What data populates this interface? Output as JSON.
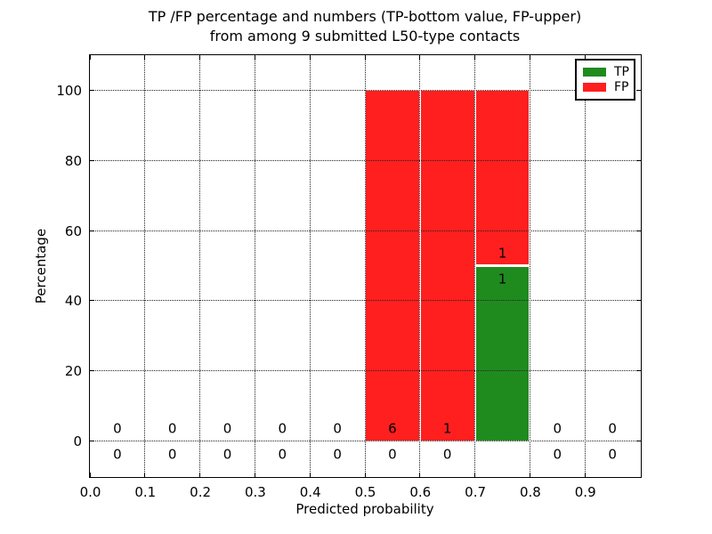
{
  "chart_data": {
    "type": "bar",
    "stacked": true,
    "title_line1": "TP /FP percentage and numbers (TP-bottom value, FP-upper)",
    "title_line2": "from among 9 submitted L50-type contacts",
    "xlabel": "Predicted probability",
    "ylabel": "Percentage",
    "xlim": [
      0,
      1
    ],
    "ylim": [
      -10,
      110
    ],
    "x_ticks": [
      {
        "value": 0.0,
        "label": "0.0"
      },
      {
        "value": 0.1,
        "label": "0.1"
      },
      {
        "value": 0.2,
        "label": "0.2"
      },
      {
        "value": 0.3,
        "label": "0.3"
      },
      {
        "value": 0.4,
        "label": "0.4"
      },
      {
        "value": 0.5,
        "label": "0.5"
      },
      {
        "value": 0.6,
        "label": "0.6"
      },
      {
        "value": 0.7,
        "label": "0.7"
      },
      {
        "value": 0.8,
        "label": "0.8"
      },
      {
        "value": 0.9,
        "label": "0.9"
      }
    ],
    "y_ticks": [
      {
        "value": 0,
        "label": "0"
      },
      {
        "value": 20,
        "label": "20"
      },
      {
        "value": 40,
        "label": "40"
      },
      {
        "value": 60,
        "label": "60"
      },
      {
        "value": 80,
        "label": "80"
      },
      {
        "value": 100,
        "label": "100"
      }
    ],
    "grid_style": "dotted",
    "colors": {
      "tp": "#1f8b1f",
      "fp": "#ff1f1f"
    },
    "legend": {
      "position": "upper right",
      "entries": [
        {
          "key": "tp",
          "label": "TP"
        },
        {
          "key": "fp",
          "label": "FP"
        }
      ]
    },
    "total_submitted": 9,
    "bins": [
      {
        "x0": 0.0,
        "x1": 0.1,
        "tp_count": "0",
        "fp_count": "0",
        "tp_pct": 0,
        "fp_pct": 0
      },
      {
        "x0": 0.1,
        "x1": 0.2,
        "tp_count": "0",
        "fp_count": "0",
        "tp_pct": 0,
        "fp_pct": 0
      },
      {
        "x0": 0.2,
        "x1": 0.3,
        "tp_count": "0",
        "fp_count": "0",
        "tp_pct": 0,
        "fp_pct": 0
      },
      {
        "x0": 0.3,
        "x1": 0.4,
        "tp_count": "0",
        "fp_count": "0",
        "tp_pct": 0,
        "fp_pct": 0
      },
      {
        "x0": 0.4,
        "x1": 0.5,
        "tp_count": "0",
        "fp_count": "0",
        "tp_pct": 0,
        "fp_pct": 0
      },
      {
        "x0": 0.5,
        "x1": 0.6,
        "tp_count": "0",
        "fp_count": "6",
        "tp_pct": 0,
        "fp_pct": 100
      },
      {
        "x0": 0.6,
        "x1": 0.7,
        "tp_count": "0",
        "fp_count": "1",
        "tp_pct": 0,
        "fp_pct": 100
      },
      {
        "x0": 0.7,
        "x1": 0.8,
        "tp_count": "1",
        "fp_count": "1",
        "tp_pct": 50,
        "fp_pct": 50
      },
      {
        "x0": 0.8,
        "x1": 0.9,
        "tp_count": "0",
        "fp_count": "0",
        "tp_pct": 0,
        "fp_pct": 0
      },
      {
        "x0": 0.9,
        "x1": 1.0,
        "tp_count": "0",
        "fp_count": "0",
        "tp_pct": 0,
        "fp_pct": 0
      }
    ]
  }
}
